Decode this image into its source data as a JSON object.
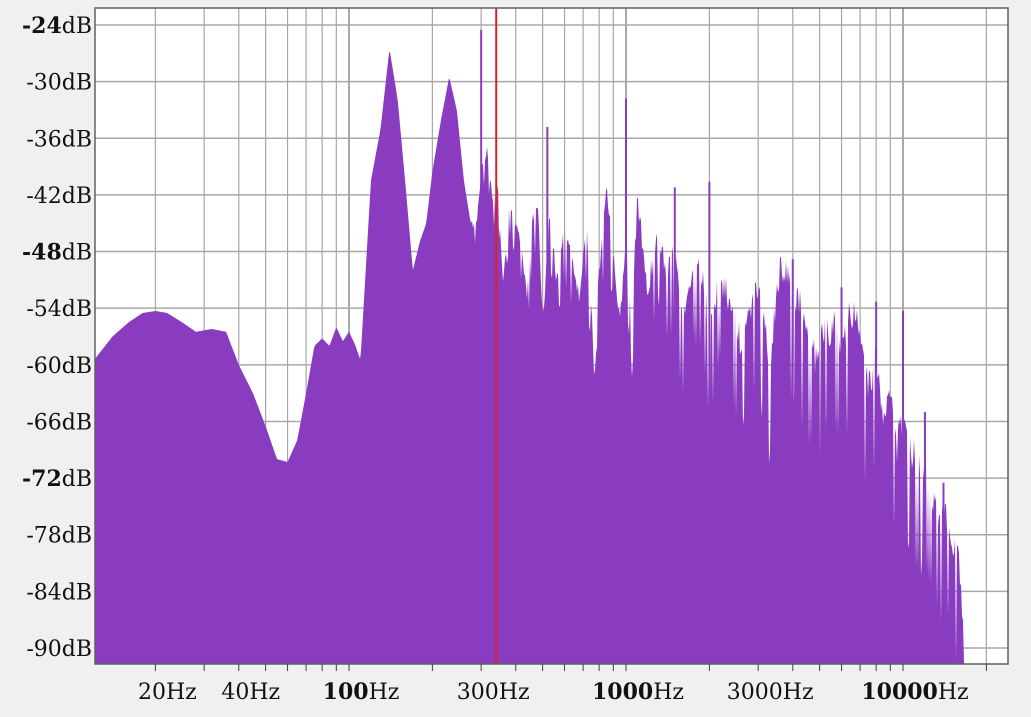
{
  "chart_data": {
    "type": "area",
    "title": "",
    "xlabel": "",
    "ylabel": "",
    "x_scale": "log",
    "xlim": [
      12,
      20000
    ],
    "ylim": [
      -93,
      -24
    ],
    "grid": true,
    "colors": {
      "fill": "#8a3cc0",
      "cursor": "#e02020",
      "grid": "#a8a8a8",
      "background": "#ffffff"
    },
    "cursor_hz": 340,
    "y_ticks": [
      {
        "value": -24,
        "unit_value": "-24",
        "unit": "dB",
        "major": true
      },
      {
        "value": -30,
        "unit_value": "-30",
        "unit": "dB",
        "major": false
      },
      {
        "value": -36,
        "unit_value": "-36",
        "unit": "dB",
        "major": false
      },
      {
        "value": -42,
        "unit_value": "-42",
        "unit": "dB",
        "major": false
      },
      {
        "value": -48,
        "unit_value": "-48",
        "unit": "dB",
        "major": true
      },
      {
        "value": -54,
        "unit_value": "-54",
        "unit": "dB",
        "major": false
      },
      {
        "value": -60,
        "unit_value": "-60",
        "unit": "dB",
        "major": false
      },
      {
        "value": -66,
        "unit_value": "-66",
        "unit": "dB",
        "major": false
      },
      {
        "value": -72,
        "unit_value": "-72",
        "unit": "dB",
        "major": true
      },
      {
        "value": -78,
        "unit_value": "-78",
        "unit": "dB",
        "major": false
      },
      {
        "value": -84,
        "unit_value": "-84",
        "unit": "dB",
        "major": false
      },
      {
        "value": -90,
        "unit_value": "-90",
        "unit": "dB",
        "major": false
      }
    ],
    "x_labels": [
      {
        "value": 20,
        "number": "20",
        "unit": "Hz",
        "major": false
      },
      {
        "value": 40,
        "number": "40",
        "unit": "Hz",
        "major": false
      },
      {
        "value": 100,
        "number": "100",
        "unit": "Hz",
        "major": true
      },
      {
        "value": 300,
        "number": "300",
        "unit": "Hz",
        "major": false
      },
      {
        "value": 1000,
        "number": "1000",
        "unit": "Hz",
        "major": true
      },
      {
        "value": 3000,
        "number": "3000",
        "unit": "Hz",
        "major": false
      },
      {
        "value": 10000,
        "number": "10000",
        "unit": "Hz",
        "major": true
      }
    ],
    "series": [
      {
        "x": [
          12,
          14,
          16,
          18,
          20,
          22,
          25,
          28,
          32,
          36,
          40,
          45,
          50,
          55,
          60,
          65,
          70,
          75,
          80,
          85,
          90,
          95,
          100,
          105,
          110,
          120,
          130,
          140,
          150,
          160,
          170,
          180,
          190,
          200,
          215,
          230,
          245,
          260,
          275,
          290,
          300,
          315,
          330,
          345,
          360,
          380,
          400,
          420,
          440,
          460,
          480,
          500,
          530,
          560,
          600,
          640,
          680,
          720,
          760,
          800,
          850,
          900,
          950,
          1000,
          1050,
          1100,
          1200,
          1300,
          1400,
          1500,
          1600,
          1700,
          1800,
          1900,
          2000,
          2200,
          2400,
          2600,
          2800,
          3000,
          3300,
          3600,
          4000,
          4400,
          4800,
          5200,
          5600,
          6000,
          6500,
          7000,
          7500,
          8000,
          8500,
          9000,
          9500,
          10000,
          11000,
          12000,
          13000,
          14000,
          15000,
          16000,
          17000
        ],
        "y": [
          -59.5,
          -57,
          -55.5,
          -54.5,
          -54.3,
          -54.5,
          -55.5,
          -56.5,
          -56.2,
          -56.5,
          -60,
          -63,
          -66.5,
          -70,
          -70.3,
          -68,
          -63,
          -58,
          -57.2,
          -58,
          -56,
          -57.5,
          -56.5,
          -57.8,
          -59.5,
          -40.5,
          -35,
          -26.5,
          -32,
          -41,
          -50,
          -47,
          -45,
          -39.5,
          -34,
          -29.5,
          -33,
          -40.5,
          -45,
          -44,
          -39,
          -36.5,
          -42,
          -40.5,
          -51,
          -42,
          -44.5,
          -47,
          -52,
          -44,
          -42,
          -55,
          -43,
          -50,
          -45,
          -48,
          -52,
          -44,
          -56,
          -49,
          -40,
          -47,
          -55,
          -46,
          -53,
          -41,
          -51,
          -44,
          -49,
          -46,
          -54,
          -50,
          -47,
          -49,
          -55,
          -49,
          -52,
          -56,
          -52,
          -50,
          -58,
          -48,
          -50,
          -53,
          -57,
          -55,
          -54,
          -56,
          -52,
          -54,
          -61,
          -57,
          -65,
          -60,
          -67,
          -63,
          -68,
          -69,
          -73,
          -73,
          -76,
          -79,
          -93
        ],
        "spikes": [
          [
            300,
            -24.5
          ],
          [
            520,
            -34.8
          ],
          [
            1000,
            -31.8
          ],
          [
            1500,
            -41.2
          ],
          [
            2000,
            -40.6
          ],
          [
            4000,
            -48.8
          ],
          [
            6000,
            -51.8
          ],
          [
            8000,
            -53.3
          ],
          [
            10000,
            -54.3
          ],
          [
            12000,
            -65
          ],
          [
            14000,
            -72.5
          ]
        ]
      }
    ]
  }
}
